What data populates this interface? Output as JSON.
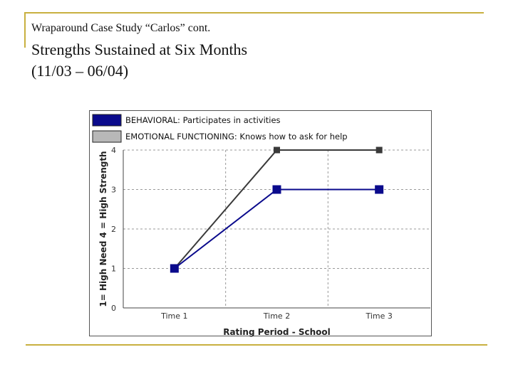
{
  "slide": {
    "subtitle": "Wraparound Case Study “Carlos” cont.",
    "title_line1": "Strengths Sustained at Six Months",
    "title_line2": "(11/03 – 06/04)"
  },
  "colors": {
    "accent_rule": "#c8b040",
    "behavioral": "#0a0a8c",
    "emotional": "#3a3a3a",
    "emotional_legend": "#b8b8b8"
  },
  "chart_data": {
    "type": "line",
    "categories": [
      "Time 1",
      "Time 2",
      "Time 3"
    ],
    "series": [
      {
        "name": "BEHAVIORAL: Participates in activities",
        "values": [
          1,
          3,
          3
        ]
      },
      {
        "name": "EMOTIONAL FUNCTIONING: Knows how to ask for help",
        "values": [
          1,
          4,
          4
        ]
      }
    ],
    "xlabel": "Rating Period - School",
    "ylabel": "1= High Need 4 = High Strength",
    "ylim": [
      0,
      4
    ],
    "yticks": [
      0,
      1,
      2,
      3,
      4
    ],
    "grid": true,
    "legend_position": "top"
  }
}
